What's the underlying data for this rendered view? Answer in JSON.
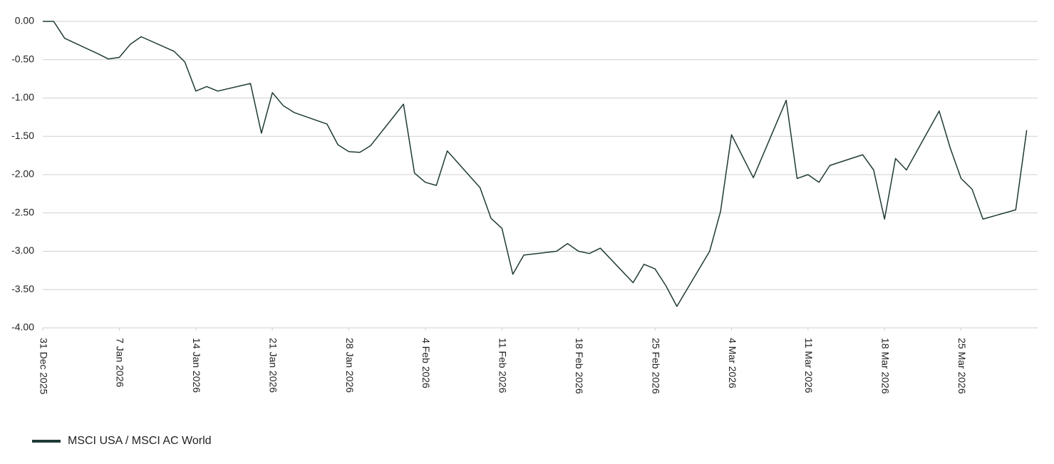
{
  "chart_data": {
    "type": "line",
    "x": [
      "2025-12-31",
      "2026-01-01",
      "2026-01-02",
      "2026-01-05",
      "2026-01-06",
      "2026-01-07",
      "2026-01-08",
      "2026-01-09",
      "2026-01-12",
      "2026-01-13",
      "2026-01-14",
      "2026-01-15",
      "2026-01-16",
      "2026-01-19",
      "2026-01-20",
      "2026-01-21",
      "2026-01-22",
      "2026-01-23",
      "2026-01-26",
      "2026-01-27",
      "2026-01-28",
      "2026-01-29",
      "2026-01-30",
      "2026-02-02",
      "2026-02-03",
      "2026-02-04",
      "2026-02-05",
      "2026-02-06",
      "2026-02-09",
      "2026-02-10",
      "2026-02-11",
      "2026-02-12",
      "2026-02-13",
      "2026-02-16",
      "2026-02-17",
      "2026-02-18",
      "2026-02-19",
      "2026-02-20",
      "2026-02-23",
      "2026-02-24",
      "2026-02-25",
      "2026-02-26",
      "2026-02-27",
      "2026-03-02",
      "2026-03-03",
      "2026-03-04",
      "2026-03-06",
      "2026-03-09",
      "2026-03-10",
      "2026-03-11",
      "2026-03-12",
      "2026-03-13",
      "2026-03-16",
      "2026-03-17",
      "2026-03-18",
      "2026-03-19",
      "2026-03-20",
      "2026-03-23",
      "2026-03-24",
      "2026-03-25",
      "2026-03-26",
      "2026-03-27",
      "2026-03-30",
      "2026-03-31"
    ],
    "series": [
      {
        "name": "MSCI USA / MSCI AC World",
        "color": "#1f3a36",
        "values": [
          0,
          0,
          -0.22,
          -0.42,
          -0.49,
          -0.47,
          -0.3,
          -0.2,
          -0.39,
          -0.53,
          -0.91,
          -0.85,
          -0.91,
          -0.81,
          -1.46,
          -0.93,
          -1.1,
          -1.19,
          -1.34,
          -1.61,
          -1.7,
          -1.71,
          -1.62,
          -1.08,
          -1.98,
          -2.1,
          -2.14,
          -1.69,
          -2.17,
          -2.57,
          -2.7,
          -3.3,
          -3.05,
          -3.0,
          -2.9,
          -3.0,
          -3.03,
          -2.96,
          -3.41,
          -3.17,
          -3.23,
          -3.45,
          -3.72,
          -3.0,
          -2.48,
          -1.48,
          -2.04,
          -1.03,
          -2.05,
          -2.0,
          -2.1,
          -1.88,
          -1.74,
          -1.94,
          -2.58,
          -1.79,
          -1.94,
          -1.17,
          -1.65,
          -2.05,
          -2.19,
          -2.58,
          -2.46,
          -1.42
        ]
      }
    ],
    "xlim": [
      "2025-12-31",
      "2026-04-01"
    ],
    "xticks": [
      {
        "value": "2025-12-31",
        "label": "31 Dec 2025"
      },
      {
        "value": "2026-01-07",
        "label": "7 Jan 2026"
      },
      {
        "value": "2026-01-14",
        "label": "14 Jan 2026"
      },
      {
        "value": "2026-01-21",
        "label": "21 Jan 2026"
      },
      {
        "value": "2026-01-28",
        "label": "28 Jan 2026"
      },
      {
        "value": "2026-02-04",
        "label": "4 Feb 2026"
      },
      {
        "value": "2026-02-11",
        "label": "11 Feb 2026"
      },
      {
        "value": "2026-02-18",
        "label": "18 Feb 2026"
      },
      {
        "value": "2026-02-25",
        "label": "25 Feb 2026"
      },
      {
        "value": "2026-03-04",
        "label": "4 Mar 2026"
      },
      {
        "value": "2026-03-11",
        "label": "11 Mar 2026"
      },
      {
        "value": "2026-03-18",
        "label": "18 Mar 2026"
      },
      {
        "value": "2026-03-25",
        "label": "25 Mar 2026"
      }
    ],
    "ylim": [
      -4,
      0
    ],
    "yticks": [
      {
        "value": 0,
        "label": "0.00"
      },
      {
        "value": -0.5,
        "label": "-0.50"
      },
      {
        "value": -1,
        "label": "-1.00"
      },
      {
        "value": -1.5,
        "label": "-1.50"
      },
      {
        "value": -2,
        "label": "-2.00"
      },
      {
        "value": -2.5,
        "label": "-2.50"
      },
      {
        "value": -3,
        "label": "-3.00"
      },
      {
        "value": -3.5,
        "label": "-3.50"
      },
      {
        "value": -4,
        "label": "-4.00"
      }
    ],
    "grid": true,
    "legend": "bottom-left"
  }
}
